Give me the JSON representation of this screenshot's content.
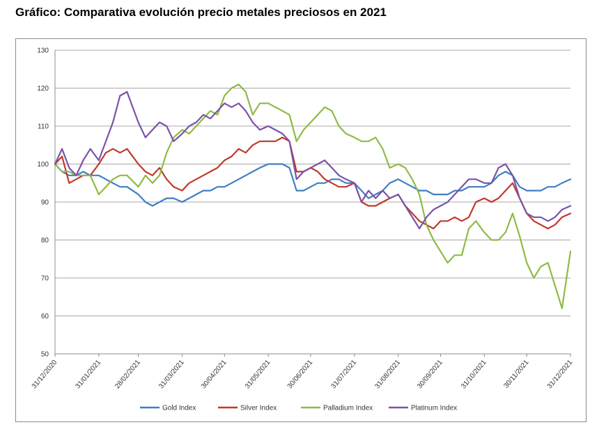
{
  "page_title": "Gráfico: Comparativa evolución precio metales preciosos en 2021",
  "chart_data": {
    "type": "line",
    "title": "Gráfico: Comparativa evolución precio metales preciosos en 2021",
    "xlabel": "",
    "ylabel": "",
    "ylim": [
      50,
      130
    ],
    "yticks": [
      50,
      60,
      70,
      80,
      90,
      100,
      110,
      120,
      130
    ],
    "xlim": [
      0,
      365
    ],
    "x_tick_labels": [
      "31/12/2020",
      "31/01/2021",
      "28/02/2021",
      "31/03/2021",
      "30/04/2021",
      "31/05/2021",
      "30/06/2021",
      "31/07/2021",
      "31/08/2021",
      "30/09/2021",
      "31/10/2021",
      "30/11/2021",
      "31/12/2021"
    ],
    "x_tick_days": [
      0,
      31,
      59,
      90,
      120,
      151,
      181,
      212,
      243,
      273,
      304,
      334,
      365
    ],
    "grid": true,
    "legend": "bottom",
    "x": [
      0,
      5,
      10,
      15,
      20,
      25,
      31,
      36,
      41,
      46,
      51,
      59,
      64,
      69,
      74,
      79,
      84,
      90,
      95,
      100,
      105,
      110,
      115,
      120,
      125,
      130,
      135,
      140,
      145,
      151,
      156,
      161,
      166,
      171,
      176,
      181,
      186,
      191,
      196,
      201,
      206,
      212,
      217,
      222,
      227,
      232,
      237,
      243,
      248,
      253,
      258,
      263,
      268,
      273,
      278,
      283,
      288,
      293,
      298,
      304,
      309,
      314,
      319,
      324,
      329,
      334,
      339,
      344,
      349,
      354,
      359,
      365
    ],
    "series": [
      {
        "name": "Gold Index",
        "color": "#3f7fc2",
        "values": [
          100,
          98,
          97,
          97,
          98,
          97,
          97,
          96,
          95,
          94,
          94,
          92,
          90,
          89,
          90,
          91,
          91,
          90,
          91,
          92,
          93,
          93,
          94,
          94,
          95,
          96,
          97,
          98,
          99,
          100,
          100,
          100,
          99,
          93,
          93,
          94,
          95,
          95,
          96,
          96,
          95,
          95,
          93,
          91,
          92,
          93,
          95,
          96,
          95,
          94,
          93,
          93,
          92,
          92,
          92,
          93,
          93,
          94,
          94,
          94,
          95,
          97,
          98,
          97,
          94,
          93,
          93,
          93,
          94,
          94,
          95,
          96
        ]
      },
      {
        "name": "Silver Index",
        "color": "#c0392b",
        "values": [
          100,
          102,
          95,
          96,
          97,
          97,
          100,
          103,
          104,
          103,
          104,
          100,
          98,
          97,
          99,
          96,
          94,
          93,
          95,
          96,
          97,
          98,
          99,
          101,
          102,
          104,
          103,
          105,
          106,
          106,
          106,
          107,
          106,
          98,
          98,
          99,
          98,
          96,
          95,
          94,
          94,
          95,
          90,
          89,
          89,
          90,
          91,
          92,
          89,
          87,
          85,
          84,
          83,
          85,
          85,
          86,
          85,
          86,
          90,
          91,
          90,
          91,
          93,
          95,
          91,
          87,
          85,
          84,
          83,
          84,
          86,
          87
        ]
      },
      {
        "name": "Palladium Index",
        "color": "#8dbb45",
        "values": [
          100,
          98,
          98,
          97,
          97,
          97,
          92,
          94,
          96,
          97,
          97,
          94,
          97,
          95,
          97,
          103,
          107,
          109,
          108,
          110,
          112,
          114,
          113,
          118,
          120,
          121,
          119,
          113,
          116,
          116,
          115,
          114,
          113,
          106,
          109,
          111,
          113,
          115,
          114,
          110,
          108,
          107,
          106,
          106,
          107,
          104,
          99,
          100,
          99,
          96,
          92,
          84,
          80,
          77,
          74,
          76,
          76,
          83,
          85,
          82,
          80,
          80,
          82,
          87,
          81,
          74,
          70,
          73,
          74,
          68,
          62,
          77
        ]
      },
      {
        "name": "Platinum Index",
        "color": "#7b52a8",
        "values": [
          100,
          104,
          99,
          97,
          101,
          104,
          101,
          106,
          111,
          118,
          119,
          111,
          107,
          109,
          111,
          110,
          106,
          108,
          110,
          111,
          113,
          112,
          114,
          116,
          115,
          116,
          114,
          111,
          109,
          110,
          109,
          108,
          106,
          96,
          98,
          99,
          100,
          101,
          99,
          97,
          96,
          95,
          90,
          93,
          91,
          93,
          91,
          92,
          89,
          86,
          83,
          86,
          88,
          89,
          90,
          92,
          94,
          96,
          96,
          95,
          95,
          99,
          100,
          97,
          91,
          87,
          86,
          86,
          85,
          86,
          88,
          89
        ]
      }
    ]
  }
}
